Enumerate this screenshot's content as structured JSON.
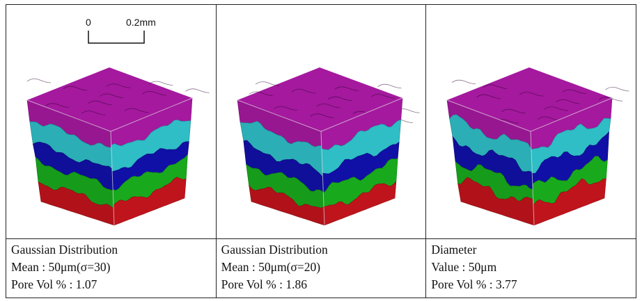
{
  "scale_bar": {
    "start_label": "0",
    "end_label": "0.2mm"
  },
  "panels": [
    {
      "caption": [
        "Gaussian Distribution",
        "Mean : 50μm(σ=30)",
        "Pore Vol % : 1.07"
      ]
    },
    {
      "caption": [
        "Gaussian Distribution",
        "Mean : 50μm(σ=20)",
        "Pore Vol % : 1.86"
      ]
    },
    {
      "caption": [
        "Diameter",
        "Value : 50μm",
        "Pore Vol % : 3.77"
      ]
    }
  ],
  "layer_colors": [
    "#a4199e",
    "#2fbdc6",
    "#1010a6",
    "#19a91d",
    "#c0141c"
  ]
}
